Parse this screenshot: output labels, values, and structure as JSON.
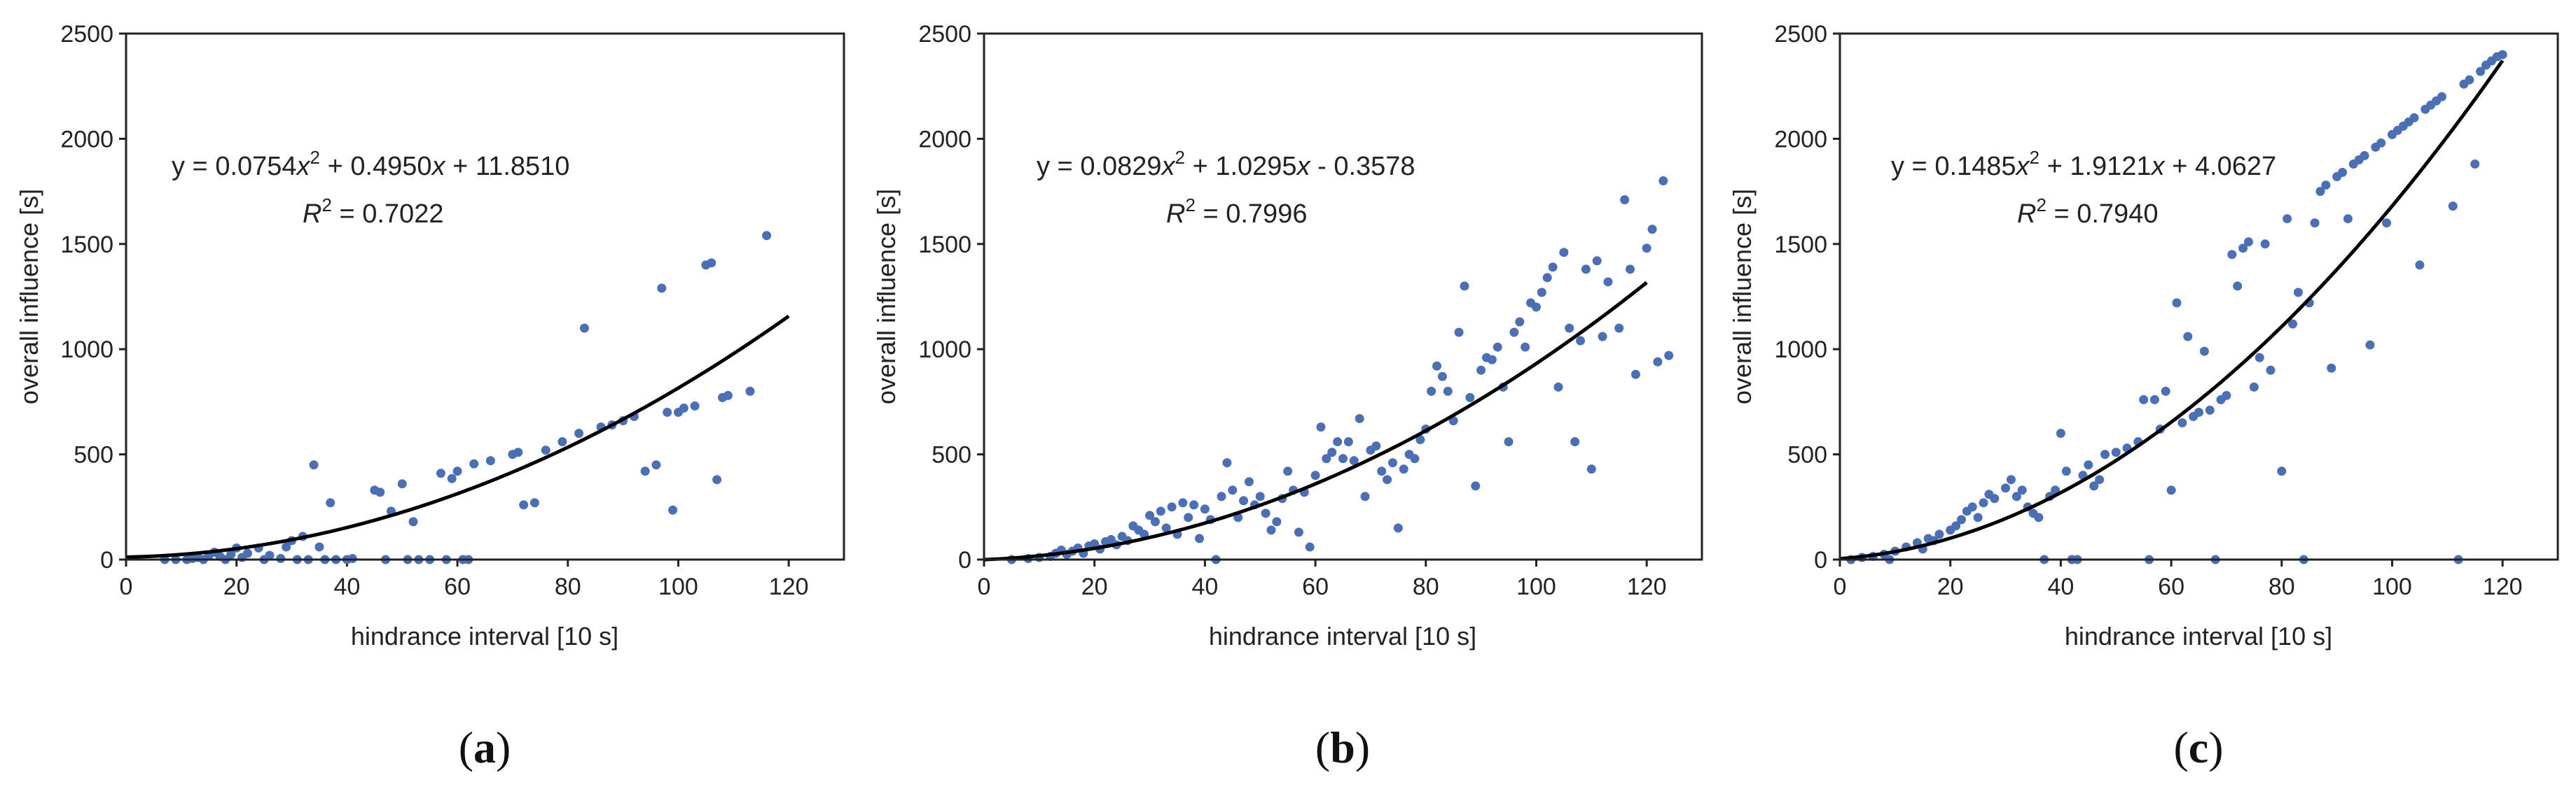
{
  "figure": {
    "panels": [
      {
        "caption_open": "(",
        "caption_letter": "a",
        "caption_close": ")",
        "equation": {
          "a": "0.0754",
          "b": "0.4950",
          "sign": "+",
          "c": "11.8510"
        },
        "r2": "0.7022"
      },
      {
        "caption_open": "(",
        "caption_letter": "b",
        "caption_close": ")",
        "equation": {
          "a": "0.0829",
          "b": "1.0295",
          "sign": "-",
          "c": "0.3578"
        },
        "r2": "0.7996"
      },
      {
        "caption_open": "(",
        "caption_letter": "c",
        "caption_close": ")",
        "equation": {
          "a": "0.1485",
          "b": "1.9121",
          "sign": "+",
          "c": "4.0627"
        },
        "r2": "0.7940"
      }
    ]
  },
  "chart_data": [
    {
      "type": "scatter",
      "title": "",
      "xlabel": "hindrance interval [10 s]",
      "ylabel": "overall influence [s]",
      "xlim": [
        0,
        130
      ],
      "ylim": [
        0,
        2500
      ],
      "xticks": [
        0,
        20,
        40,
        60,
        80,
        100,
        120
      ],
      "yticks": [
        0,
        500,
        1000,
        1500,
        2000,
        2500
      ],
      "grid": false,
      "point_color": "#4a6fb5",
      "fit_color": "#000000",
      "fit": {
        "a": 0.0754,
        "b": 0.495,
        "c": 11.851,
        "x_range": [
          0,
          120
        ]
      },
      "points": [
        [
          7,
          0
        ],
        [
          9,
          0
        ],
        [
          11,
          0
        ],
        [
          12,
          5
        ],
        [
          13,
          10
        ],
        [
          14,
          0
        ],
        [
          15,
          20
        ],
        [
          16,
          35
        ],
        [
          17,
          15
        ],
        [
          18,
          0
        ],
        [
          19,
          25
        ],
        [
          20,
          55
        ],
        [
          21,
          10
        ],
        [
          22,
          30
        ],
        [
          24,
          55
        ],
        [
          25,
          0
        ],
        [
          26,
          20
        ],
        [
          28,
          5
        ],
        [
          29,
          60
        ],
        [
          30,
          90
        ],
        [
          31,
          0
        ],
        [
          32,
          110
        ],
        [
          33,
          0
        ],
        [
          34,
          450
        ],
        [
          35,
          60
        ],
        [
          36,
          0
        ],
        [
          37,
          270
        ],
        [
          38,
          0
        ],
        [
          40,
          0
        ],
        [
          41,
          5
        ],
        [
          45,
          330
        ],
        [
          46,
          320
        ],
        [
          47,
          0
        ],
        [
          48,
          230
        ],
        [
          50,
          360
        ],
        [
          51,
          0
        ],
        [
          52,
          180
        ],
        [
          53,
          0
        ],
        [
          55,
          0
        ],
        [
          57,
          410
        ],
        [
          58,
          0
        ],
        [
          59,
          385
        ],
        [
          60,
          420
        ],
        [
          61,
          0
        ],
        [
          62,
          0
        ],
        [
          63,
          455
        ],
        [
          66,
          470
        ],
        [
          70,
          500
        ],
        [
          71,
          510
        ],
        [
          72,
          260
        ],
        [
          74,
          270
        ],
        [
          76,
          520
        ],
        [
          79,
          560
        ],
        [
          82,
          600
        ],
        [
          83,
          1100
        ],
        [
          86,
          630
        ],
        [
          88,
          640
        ],
        [
          90,
          660
        ],
        [
          92,
          680
        ],
        [
          94,
          420
        ],
        [
          96,
          450
        ],
        [
          97,
          1290
        ],
        [
          98,
          700
        ],
        [
          99,
          235
        ],
        [
          100,
          700
        ],
        [
          101,
          720
        ],
        [
          103,
          730
        ],
        [
          105,
          1400
        ],
        [
          106,
          1410
        ],
        [
          107,
          380
        ],
        [
          108,
          770
        ],
        [
          109,
          780
        ],
        [
          113,
          800
        ],
        [
          116,
          1540
        ]
      ]
    },
    {
      "type": "scatter",
      "title": "",
      "xlabel": "hindrance interval [10 s]",
      "ylabel": "overall influence [s]",
      "xlim": [
        0,
        130
      ],
      "ylim": [
        0,
        2500
      ],
      "xticks": [
        0,
        20,
        40,
        60,
        80,
        100,
        120
      ],
      "yticks": [
        0,
        500,
        1000,
        1500,
        2000,
        2500
      ],
      "grid": false,
      "point_color": "#4a6fb5",
      "fit_color": "#000000",
      "fit": {
        "a": 0.0829,
        "b": 1.0295,
        "c": -0.3578,
        "x_range": [
          0,
          120
        ]
      },
      "points": [
        [
          5,
          0
        ],
        [
          8,
          5
        ],
        [
          10,
          10
        ],
        [
          12,
          15
        ],
        [
          13,
          30
        ],
        [
          14,
          45
        ],
        [
          15,
          25
        ],
        [
          16,
          40
        ],
        [
          17,
          55
        ],
        [
          18,
          30
        ],
        [
          19,
          65
        ],
        [
          20,
          75
        ],
        [
          21,
          50
        ],
        [
          22,
          85
        ],
        [
          23,
          95
        ],
        [
          24,
          70
        ],
        [
          25,
          110
        ],
        [
          26,
          90
        ],
        [
          27,
          160
        ],
        [
          28,
          140
        ],
        [
          29,
          120
        ],
        [
          30,
          210
        ],
        [
          31,
          180
        ],
        [
          32,
          230
        ],
        [
          33,
          150
        ],
        [
          34,
          250
        ],
        [
          35,
          120
        ],
        [
          36,
          270
        ],
        [
          37,
          200
        ],
        [
          38,
          260
        ],
        [
          39,
          100
        ],
        [
          40,
          240
        ],
        [
          41,
          190
        ],
        [
          42,
          0
        ],
        [
          43,
          300
        ],
        [
          44,
          460
        ],
        [
          45,
          330
        ],
        [
          46,
          200
        ],
        [
          47,
          280
        ],
        [
          48,
          370
        ],
        [
          49,
          260
        ],
        [
          50,
          300
        ],
        [
          51,
          220
        ],
        [
          52,
          140
        ],
        [
          53,
          180
        ],
        [
          54,
          290
        ],
        [
          55,
          420
        ],
        [
          56,
          330
        ],
        [
          57,
          130
        ],
        [
          58,
          320
        ],
        [
          59,
          60
        ],
        [
          60,
          400
        ],
        [
          61,
          630
        ],
        [
          62,
          480
        ],
        [
          63,
          510
        ],
        [
          64,
          560
        ],
        [
          65,
          480
        ],
        [
          66,
          560
        ],
        [
          67,
          470
        ],
        [
          68,
          670
        ],
        [
          69,
          300
        ],
        [
          70,
          520
        ],
        [
          71,
          540
        ],
        [
          72,
          420
        ],
        [
          73,
          380
        ],
        [
          74,
          460
        ],
        [
          75,
          150
        ],
        [
          76,
          430
        ],
        [
          77,
          500
        ],
        [
          78,
          480
        ],
        [
          79,
          570
        ],
        [
          80,
          620
        ],
        [
          81,
          800
        ],
        [
          82,
          920
        ],
        [
          83,
          870
        ],
        [
          84,
          800
        ],
        [
          85,
          660
        ],
        [
          86,
          1080
        ],
        [
          87,
          1300
        ],
        [
          88,
          770
        ],
        [
          89,
          350
        ],
        [
          90,
          900
        ],
        [
          91,
          960
        ],
        [
          92,
          950
        ],
        [
          93,
          1010
        ],
        [
          94,
          820
        ],
        [
          95,
          560
        ],
        [
          96,
          1080
        ],
        [
          97,
          1130
        ],
        [
          98,
          1010
        ],
        [
          99,
          1220
        ],
        [
          100,
          1200
        ],
        [
          101,
          1270
        ],
        [
          102,
          1340
        ],
        [
          103,
          1390
        ],
        [
          104,
          820
        ],
        [
          105,
          1460
        ],
        [
          106,
          1100
        ],
        [
          107,
          560
        ],
        [
          108,
          1040
        ],
        [
          109,
          1380
        ],
        [
          110,
          430
        ],
        [
          111,
          1420
        ],
        [
          112,
          1060
        ],
        [
          113,
          1320
        ],
        [
          115,
          1100
        ],
        [
          116,
          1710
        ],
        [
          117,
          1380
        ],
        [
          118,
          880
        ],
        [
          120,
          1480
        ],
        [
          121,
          1570
        ],
        [
          122,
          940
        ],
        [
          123,
          1800
        ],
        [
          124,
          970
        ]
      ]
    },
    {
      "type": "scatter",
      "title": "",
      "xlabel": "hindrance interval [10 s]",
      "ylabel": "overall influence [s]",
      "xlim": [
        0,
        130
      ],
      "ylim": [
        0,
        2500
      ],
      "xticks": [
        0,
        20,
        40,
        60,
        80,
        100,
        120
      ],
      "yticks": [
        0,
        500,
        1000,
        1500,
        2000,
        2500
      ],
      "grid": false,
      "point_color": "#4a6fb5",
      "fit_color": "#000000",
      "fit": {
        "a": 0.1485,
        "b": 1.9121,
        "c": 4.0627,
        "x_range": [
          0,
          120
        ]
      },
      "points": [
        [
          2,
          0
        ],
        [
          4,
          10
        ],
        [
          6,
          15
        ],
        [
          8,
          25
        ],
        [
          9,
          0
        ],
        [
          10,
          40
        ],
        [
          12,
          60
        ],
        [
          14,
          80
        ],
        [
          15,
          50
        ],
        [
          16,
          100
        ],
        [
          17,
          90
        ],
        [
          18,
          120
        ],
        [
          20,
          140
        ],
        [
          21,
          160
        ],
        [
          22,
          190
        ],
        [
          23,
          230
        ],
        [
          24,
          250
        ],
        [
          25,
          200
        ],
        [
          26,
          270
        ],
        [
          27,
          310
        ],
        [
          28,
          290
        ],
        [
          30,
          340
        ],
        [
          31,
          380
        ],
        [
          32,
          300
        ],
        [
          33,
          330
        ],
        [
          34,
          250
        ],
        [
          35,
          220
        ],
        [
          36,
          200
        ],
        [
          37,
          0
        ],
        [
          38,
          300
        ],
        [
          39,
          330
        ],
        [
          40,
          600
        ],
        [
          41,
          420
        ],
        [
          42,
          0
        ],
        [
          43,
          0
        ],
        [
          44,
          400
        ],
        [
          45,
          450
        ],
        [
          46,
          350
        ],
        [
          47,
          380
        ],
        [
          48,
          500
        ],
        [
          50,
          510
        ],
        [
          52,
          530
        ],
        [
          54,
          560
        ],
        [
          55,
          760
        ],
        [
          56,
          0
        ],
        [
          57,
          760
        ],
        [
          58,
          620
        ],
        [
          59,
          800
        ],
        [
          60,
          330
        ],
        [
          61,
          1220
        ],
        [
          62,
          650
        ],
        [
          63,
          1060
        ],
        [
          64,
          680
        ],
        [
          65,
          700
        ],
        [
          66,
          990
        ],
        [
          67,
          710
        ],
        [
          68,
          0
        ],
        [
          69,
          760
        ],
        [
          70,
          780
        ],
        [
          71,
          1450
        ],
        [
          72,
          1300
        ],
        [
          73,
          1480
        ],
        [
          74,
          1510
        ],
        [
          75,
          820
        ],
        [
          76,
          960
        ],
        [
          77,
          1500
        ],
        [
          78,
          900
        ],
        [
          80,
          420
        ],
        [
          81,
          1620
        ],
        [
          82,
          1120
        ],
        [
          83,
          1270
        ],
        [
          84,
          0
        ],
        [
          85,
          1220
        ],
        [
          86,
          1600
        ],
        [
          87,
          1750
        ],
        [
          88,
          1780
        ],
        [
          89,
          910
        ],
        [
          90,
          1820
        ],
        [
          91,
          1840
        ],
        [
          92,
          1620
        ],
        [
          93,
          1880
        ],
        [
          94,
          1900
        ],
        [
          95,
          1920
        ],
        [
          96,
          1020
        ],
        [
          97,
          1960
        ],
        [
          98,
          1980
        ],
        [
          99,
          1600
        ],
        [
          100,
          2020
        ],
        [
          101,
          2040
        ],
        [
          102,
          2060
        ],
        [
          103,
          2080
        ],
        [
          104,
          2100
        ],
        [
          105,
          1400
        ],
        [
          106,
          2140
        ],
        [
          107,
          2160
        ],
        [
          108,
          2180
        ],
        [
          109,
          2200
        ],
        [
          111,
          1680
        ],
        [
          112,
          0
        ],
        [
          113,
          2260
        ],
        [
          114,
          2280
        ],
        [
          115,
          1880
        ],
        [
          116,
          2320
        ],
        [
          117,
          2350
        ],
        [
          118,
          2370
        ],
        [
          119,
          2390
        ],
        [
          120,
          2400
        ]
      ]
    }
  ]
}
